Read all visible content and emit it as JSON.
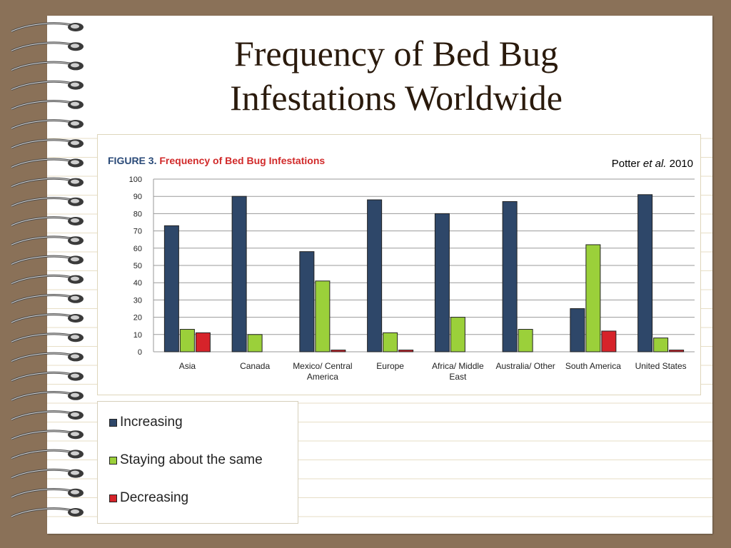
{
  "slide": {
    "title_line1": "Frequency of Bed Bug",
    "title_line2": "Infestations Worldwide",
    "citation_author": "Potter",
    "citation_etal": "et al.",
    "citation_year": "2010"
  },
  "colors": {
    "increasing": "#2e4769",
    "same": "#9bd03a",
    "decreasing": "#d6232a",
    "figure_label": "#2a4a78",
    "figure_title": "#d12a2a"
  },
  "chart_data": {
    "type": "bar",
    "figure_number": "FIGURE 3.",
    "title": "Frequency of Bed Bug Infestations",
    "categories": [
      "Asia",
      "Canada",
      "Mexico/ Central America",
      "Europe",
      "Africa/ Middle East",
      "Australia/ Other",
      "South America",
      "United States"
    ],
    "category_lines": [
      [
        "Asia"
      ],
      [
        "Canada"
      ],
      [
        "Mexico/ Central",
        "America"
      ],
      [
        "Europe"
      ],
      [
        "Africa/ Middle",
        "East"
      ],
      [
        "Australia/ Other"
      ],
      [
        "South America"
      ],
      [
        "United States"
      ]
    ],
    "series": [
      {
        "name": "Increasing",
        "values": [
          73,
          90,
          58,
          88,
          80,
          87,
          25,
          91
        ]
      },
      {
        "name": "Staying about the same",
        "values": [
          13,
          10,
          41,
          11,
          20,
          13,
          62,
          8
        ]
      },
      {
        "name": "Decreasing",
        "values": [
          11,
          0,
          1,
          1,
          0,
          0,
          12,
          1
        ]
      }
    ],
    "yticks": [
      0,
      10,
      20,
      30,
      40,
      50,
      60,
      70,
      80,
      90,
      100
    ],
    "ylim": [
      0,
      100
    ],
    "grid": true,
    "legend_position": "bottom-left"
  },
  "legend": {
    "items": [
      "Increasing",
      "Staying about the same",
      "Decreasing"
    ]
  }
}
